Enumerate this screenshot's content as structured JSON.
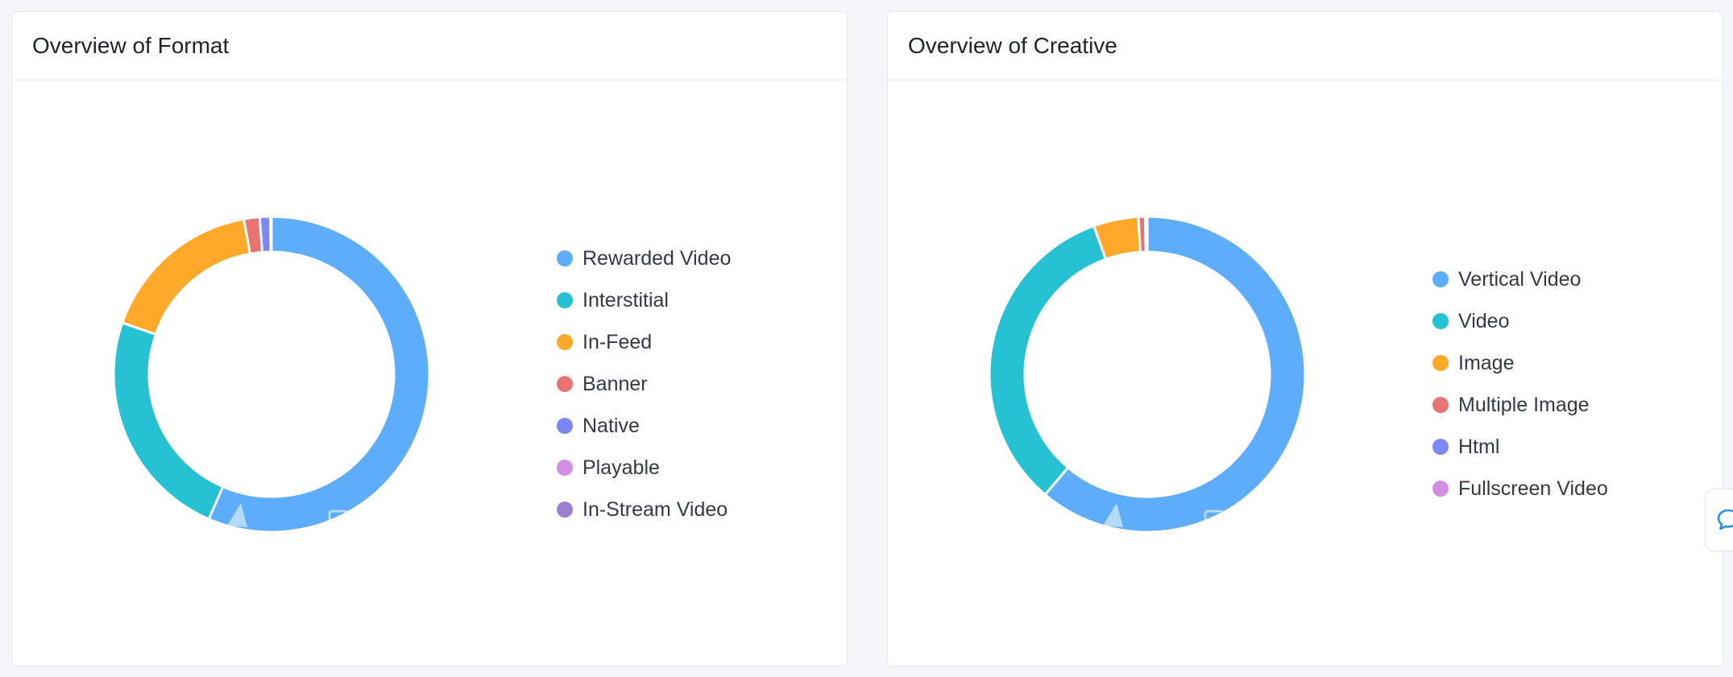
{
  "panels": [
    {
      "title": "Overview of Format"
    },
    {
      "title": "Overview of Creative"
    }
  ],
  "chart_data": [
    {
      "type": "pie",
      "title": "Overview of Format",
      "categories": [
        "Rewarded Video",
        "Interstitial",
        "In-Feed",
        "Banner",
        "Native",
        "Playable",
        "In-Stream Video"
      ],
      "values": [
        56.5,
        23.8,
        16.9,
        1.6,
        1.1,
        0.05,
        0.05
      ],
      "unit": "%",
      "colors": [
        "#5dadfa",
        "#26c2d3",
        "#ffa92a",
        "#e87373",
        "#7c86f5",
        "#d28ee0",
        "#9a7fd3"
      ],
      "legend_position": "right"
    },
    {
      "type": "pie",
      "title": "Overview of Creative",
      "categories": [
        "Vertical Video",
        "Video",
        "Image",
        "Multiple Image",
        "Html",
        "Fullscreen Video"
      ],
      "values": [
        61.2,
        33.3,
        4.6,
        0.7,
        0.1,
        0.1
      ],
      "unit": "%",
      "colors": [
        "#5dadfa",
        "#26c2d3",
        "#ffa92a",
        "#e87373",
        "#7c86f5",
        "#d28ee0"
      ],
      "legend_position": "right"
    }
  ],
  "icons": {
    "chat": "chat-bubble-icon",
    "watermark": "watermark-logo-icon"
  }
}
